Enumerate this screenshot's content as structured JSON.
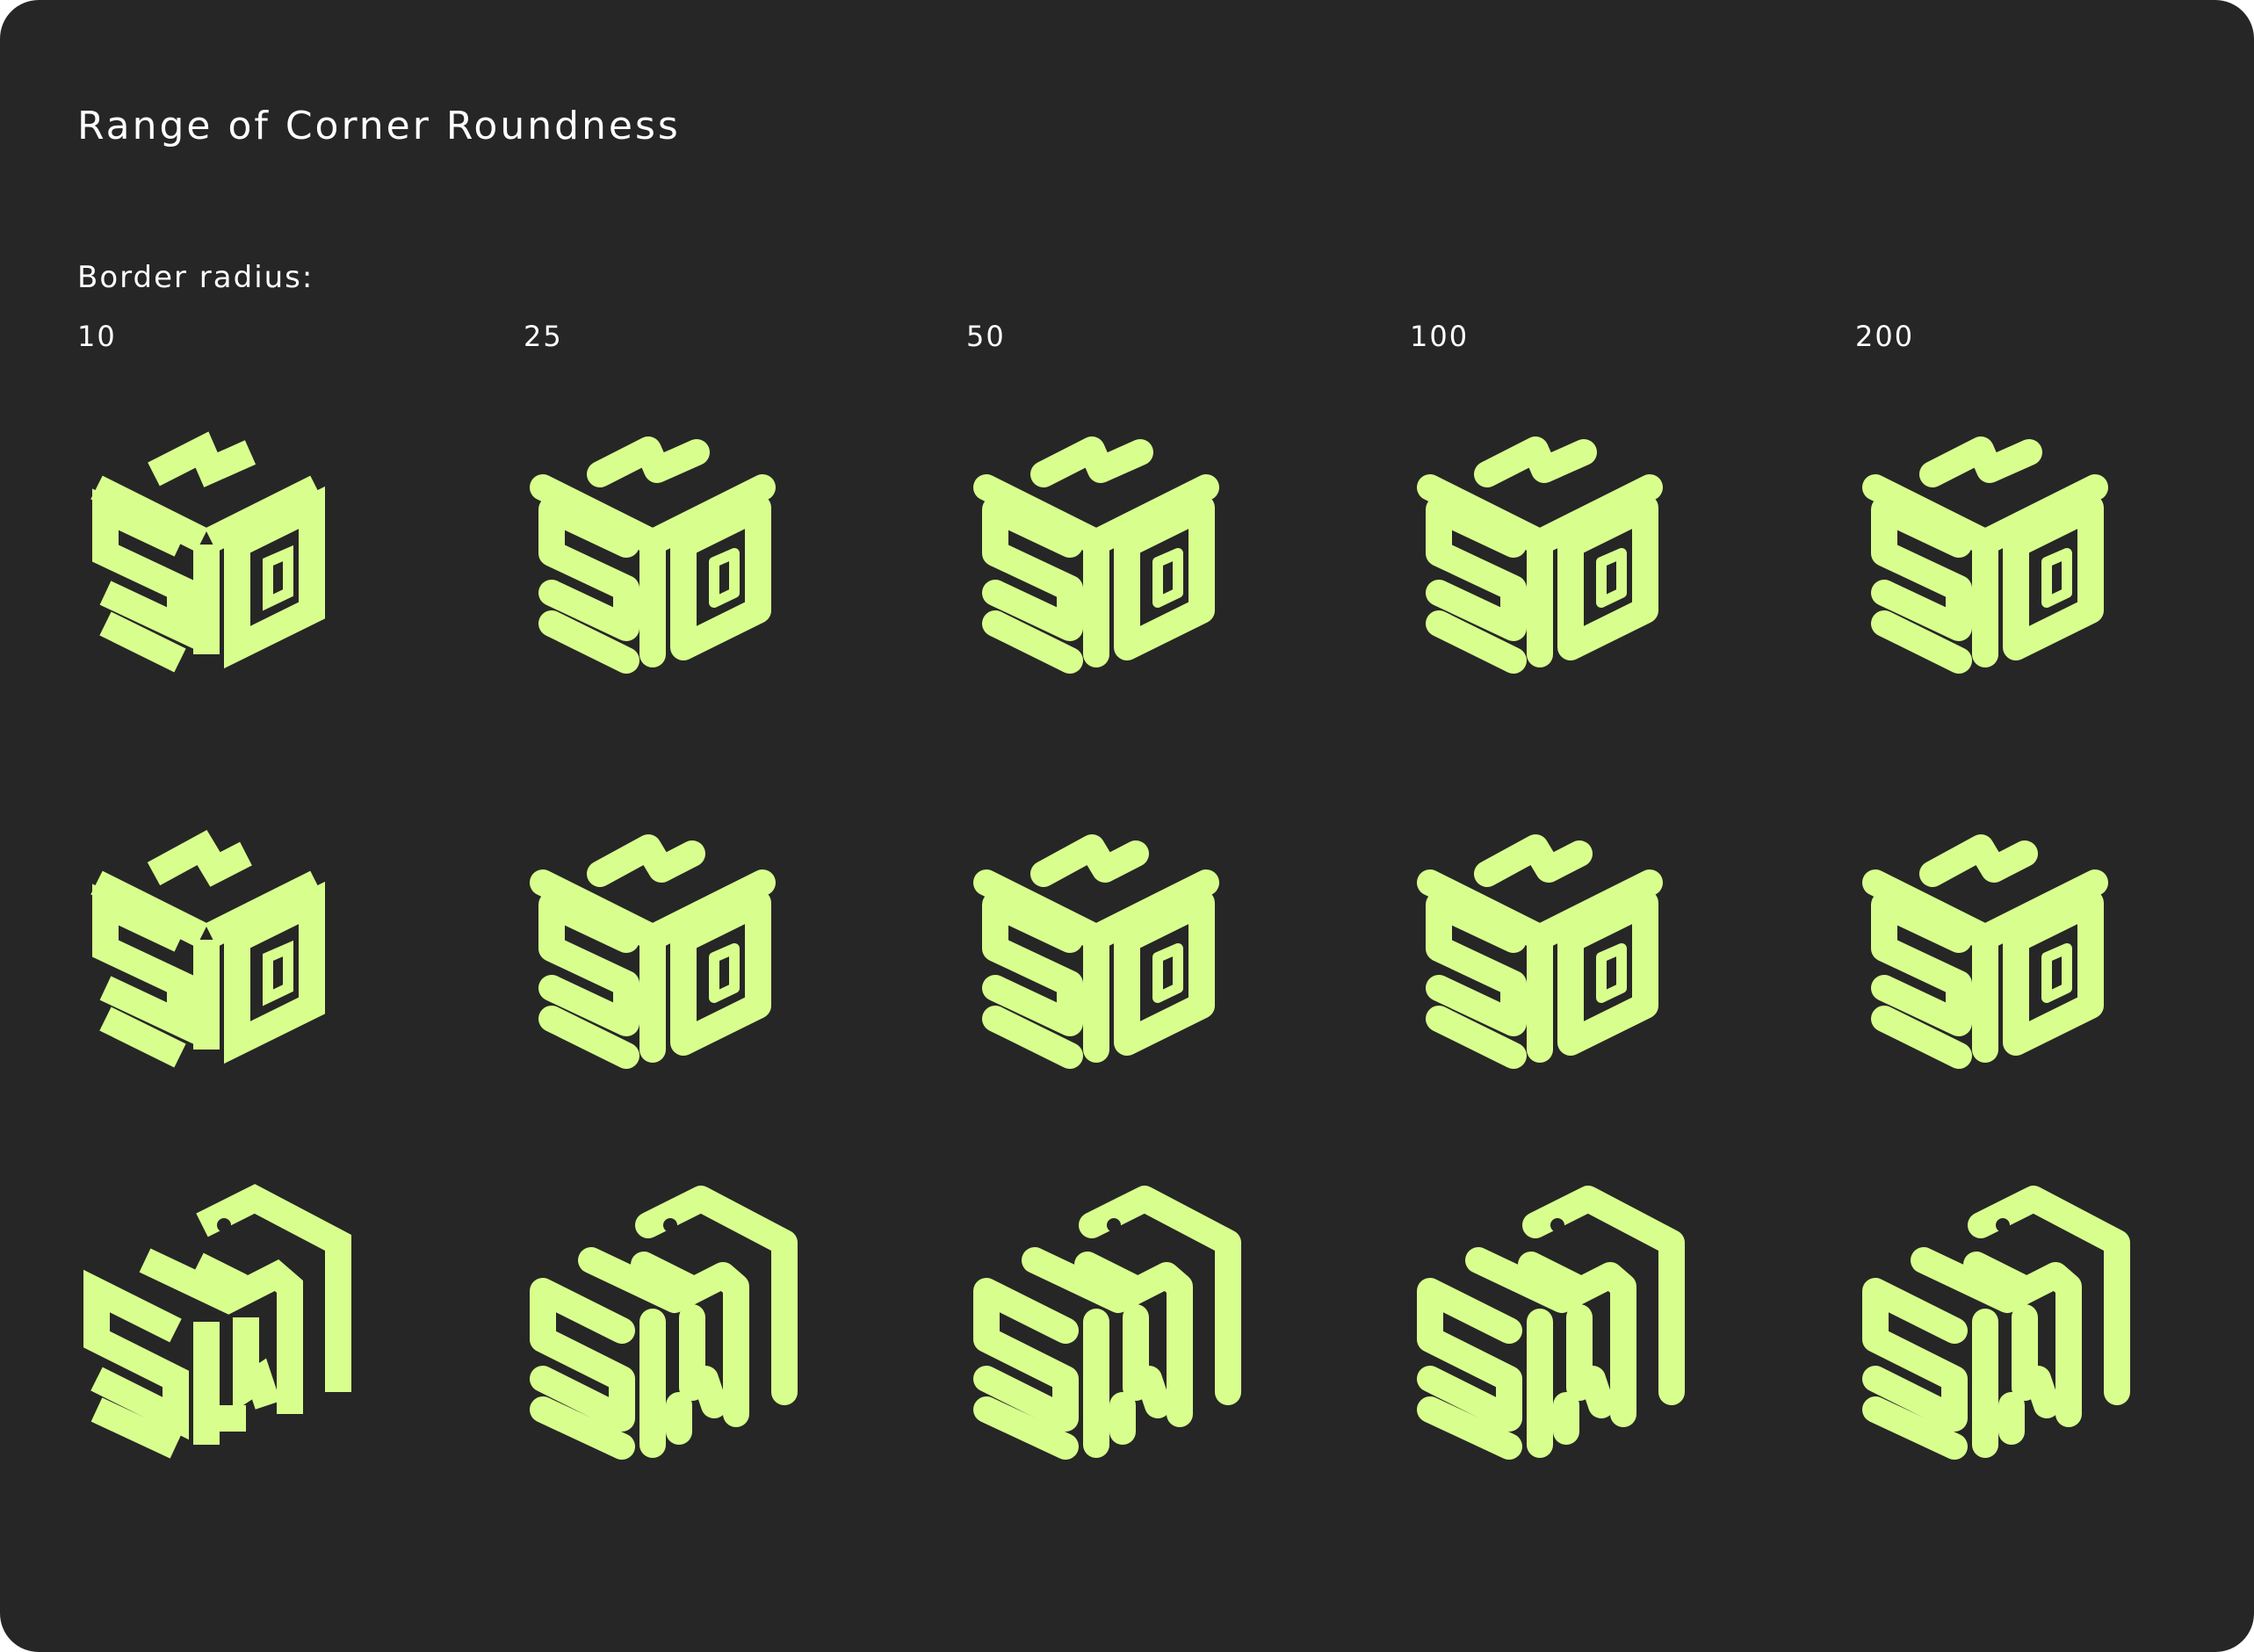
{
  "page": {
    "title": "Range of Corner Roundness",
    "subtitle": "Border radius:"
  },
  "radii": [
    {
      "label": "10",
      "value": 10
    },
    {
      "label": "25",
      "value": 25
    },
    {
      "label": "50",
      "value": 50
    },
    {
      "label": "100",
      "value": 100
    },
    {
      "label": "200",
      "value": 200
    }
  ],
  "rows": [
    {
      "name": "sq-logo-front"
    },
    {
      "name": "sq-logo-variant"
    },
    {
      "name": "sa-logo-angled"
    }
  ],
  "colors": {
    "background": "#262626",
    "mark": "#d8ff8e",
    "text": "#ffffff"
  },
  "icons": {
    "mark": "isometric-cube-logo-icon"
  }
}
